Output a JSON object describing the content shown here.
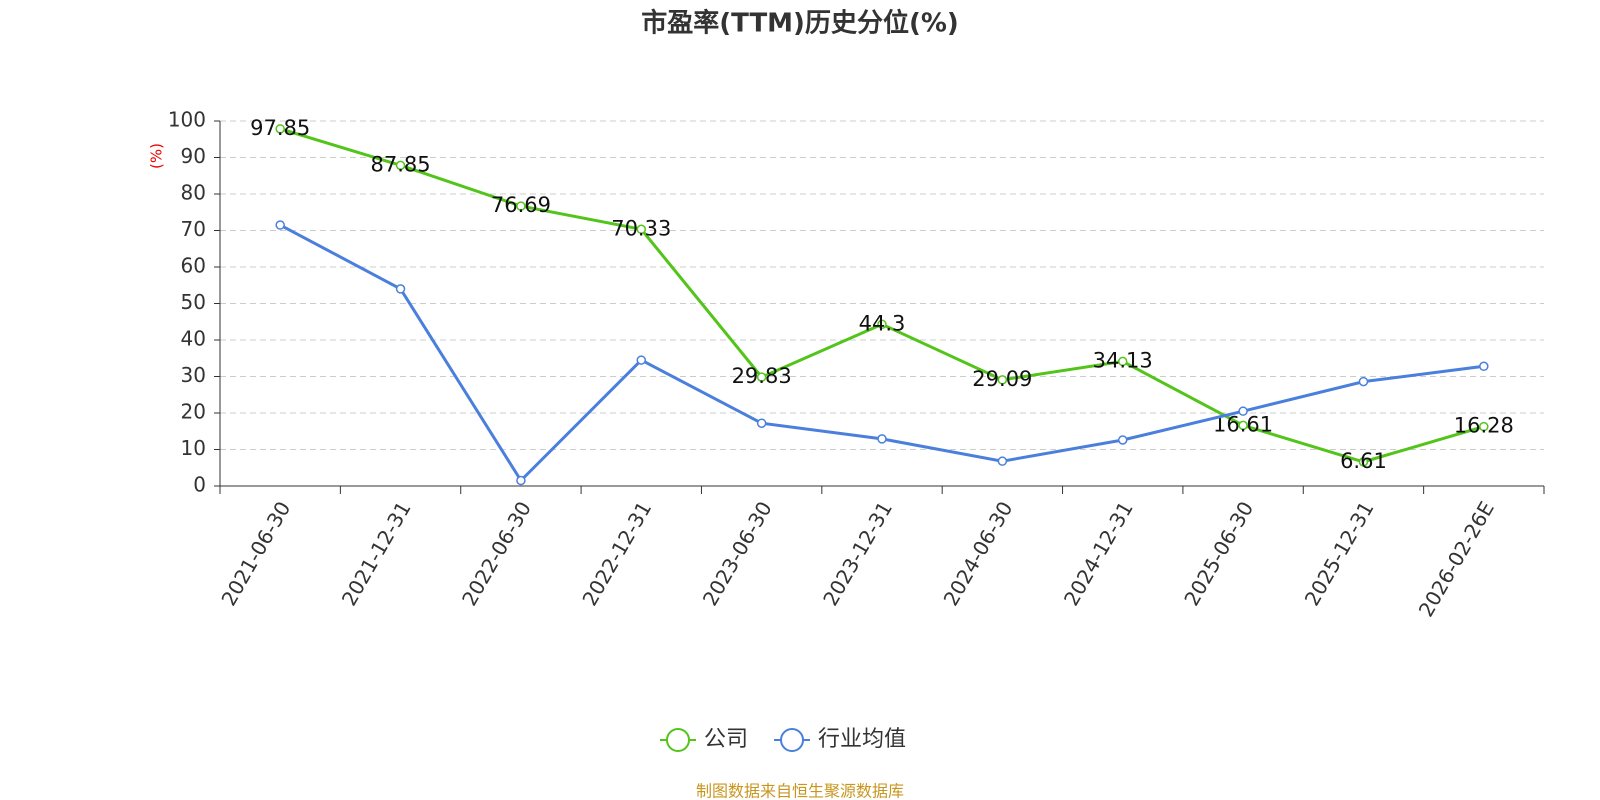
{
  "chart_data": {
    "type": "line",
    "title": "市盈率(TTM)历史分位(%)",
    "y_label": "(%)",
    "categories": [
      "2021-06-30",
      "2021-12-31",
      "2022-06-30",
      "2022-12-31",
      "2023-06-30",
      "2023-12-31",
      "2024-06-30",
      "2024-12-31",
      "2025-06-30",
      "2025-12-31",
      "2026-02-26E"
    ],
    "series": [
      {
        "name": "公司",
        "color": "#52c41a",
        "show_labels": true,
        "values": [
          97.85,
          87.85,
          76.69,
          70.33,
          29.83,
          44.3,
          29.09,
          34.13,
          16.61,
          6.61,
          16.28
        ]
      },
      {
        "name": "行业均值",
        "color": "#4a7fdc",
        "show_labels": false,
        "values": [
          71.5,
          54,
          1.5,
          34.5,
          17.2,
          12.9,
          6.8,
          12.6,
          20.5,
          28.6,
          32.8
        ]
      }
    ],
    "ylim": [
      0,
      100
    ],
    "yticks": [
      0,
      10,
      20,
      30,
      40,
      50,
      60,
      70,
      80,
      90,
      100
    ],
    "grid": true,
    "source": "制图数据来自恒生聚源数据库"
  }
}
